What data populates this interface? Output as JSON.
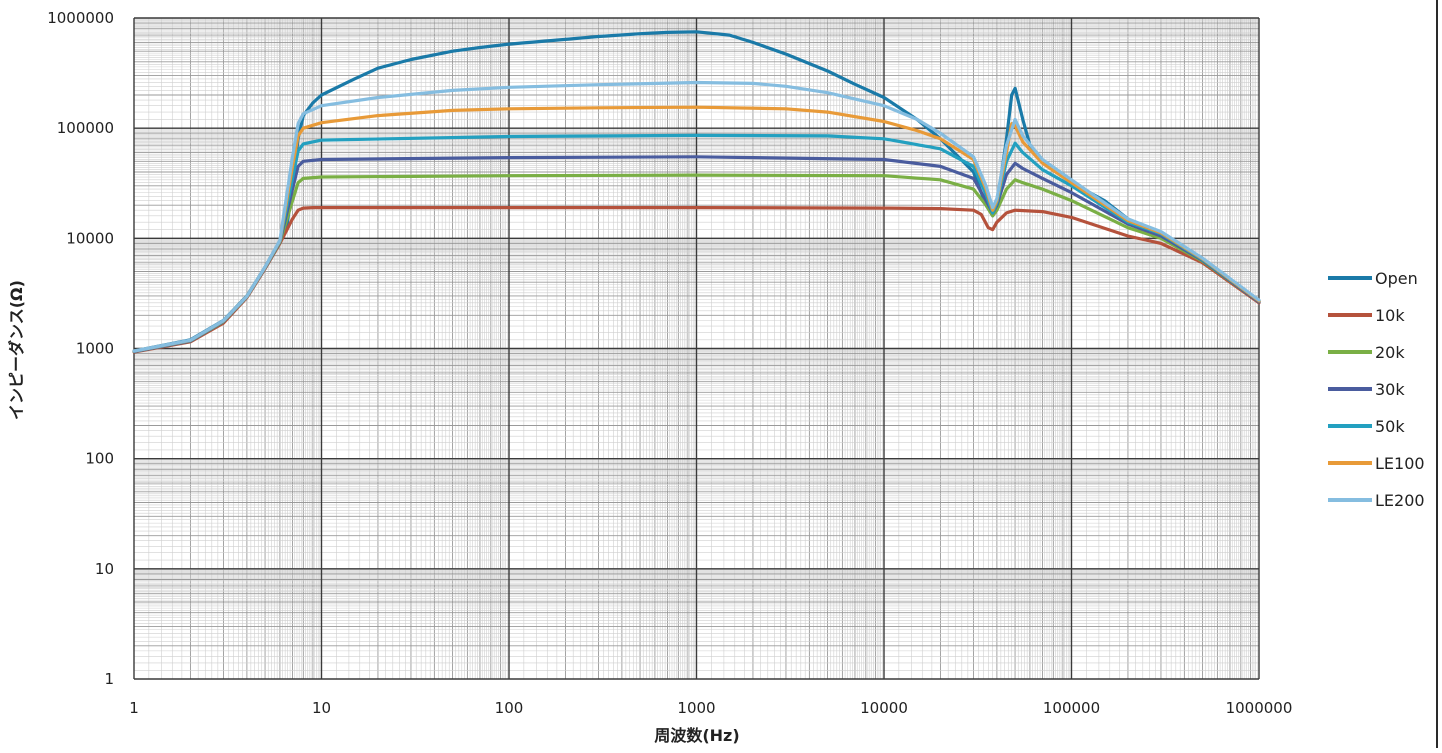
{
  "chart_data": {
    "type": "line",
    "title": "",
    "xlabel": "周波数(Hz)",
    "ylabel": "インピーダンス(Ω)",
    "x_scale": "log",
    "y_scale": "log",
    "xlim": [
      1,
      1000000
    ],
    "ylim": [
      1,
      1000000
    ],
    "x_ticks": [
      "1",
      "10",
      "100",
      "1000",
      "10000",
      "100000",
      "1000000"
    ],
    "y_ticks": [
      "1",
      "10",
      "100",
      "1000",
      "10000",
      "100000",
      "1000000"
    ],
    "grid": true,
    "legend_position": "right",
    "series": [
      {
        "name": "Open",
        "color": "#1a7aa8",
        "x": [
          1,
          2,
          3,
          4,
          5,
          6,
          6.5,
          7,
          7.5,
          8,
          9,
          10,
          15,
          20,
          30,
          50,
          70,
          100,
          200,
          300,
          500,
          700,
          1000,
          1500,
          2000,
          3000,
          5000,
          7000,
          10000,
          15000,
          20000,
          30000,
          35000,
          38000,
          40000,
          45000,
          48000,
          50000,
          55000,
          60000,
          70000,
          100000,
          150000,
          200000,
          300000,
          500000,
          1000000
        ],
        "y": [
          950,
          1200,
          1800,
          3000,
          5500,
          9500,
          12000,
          30000,
          80000,
          130000,
          170000,
          200000,
          280000,
          350000,
          420000,
          500000,
          540000,
          580000,
          640000,
          680000,
          720000,
          740000,
          750000,
          700000,
          600000,
          470000,
          330000,
          250000,
          190000,
          120000,
          80000,
          40000,
          20000,
          16000,
          20000,
          80000,
          200000,
          230000,
          120000,
          70000,
          50000,
          32000,
          22000,
          15000,
          10500,
          6000,
          2700
        ]
      },
      {
        "name": "10k",
        "color": "#b5523c",
        "x": [
          1,
          2,
          3,
          4,
          5,
          6,
          7,
          7.5,
          8,
          9,
          10,
          100,
          1000,
          10000,
          20000,
          30000,
          33000,
          36000,
          38000,
          40000,
          45000,
          50000,
          70000,
          100000,
          200000,
          300000,
          500000,
          1000000
        ],
        "y": [
          930,
          1150,
          1700,
          2900,
          5300,
          9000,
          15000,
          18000,
          18800,
          19000,
          19000,
          19000,
          19000,
          18800,
          18600,
          18000,
          16500,
          12500,
          12000,
          14000,
          17000,
          18000,
          17500,
          15500,
          10500,
          9000,
          6000,
          2600
        ]
      },
      {
        "name": "20k",
        "color": "#7aaf45",
        "x": [
          1,
          2,
          3,
          4,
          5,
          6,
          7,
          7.5,
          8,
          10,
          100,
          1000,
          10000,
          20000,
          30000,
          35000,
          38000,
          40000,
          45000,
          50000,
          55000,
          70000,
          100000,
          200000,
          300000,
          500000,
          1000000
        ],
        "y": [
          940,
          1170,
          1750,
          2950,
          5400,
          9200,
          22000,
          32000,
          35000,
          36000,
          37000,
          37500,
          37000,
          34000,
          28000,
          20000,
          16000,
          18000,
          28000,
          34000,
          32000,
          28000,
          22000,
          12500,
          10000,
          6200,
          2650
        ]
      },
      {
        "name": "30k",
        "color": "#4a5c9e",
        "x": [
          1,
          2,
          3,
          4,
          5,
          6,
          7,
          7.5,
          8,
          10,
          100,
          1000,
          10000,
          20000,
          30000,
          35000,
          38000,
          40000,
          45000,
          50000,
          55000,
          70000,
          100000,
          200000,
          300000,
          500000,
          1000000
        ],
        "y": [
          940,
          1170,
          1760,
          2950,
          5400,
          9300,
          28000,
          45000,
          50000,
          52000,
          54000,
          55000,
          52000,
          45000,
          35000,
          22000,
          17000,
          20000,
          38000,
          48000,
          43000,
          35000,
          26000,
          13500,
          10500,
          6300,
          2650
        ]
      },
      {
        "name": "50k",
        "color": "#23a0c0",
        "x": [
          1,
          2,
          3,
          4,
          5,
          6,
          7,
          7.5,
          8,
          10,
          100,
          1000,
          5000,
          10000,
          20000,
          30000,
          35000,
          38000,
          40000,
          45000,
          50000,
          55000,
          70000,
          100000,
          200000,
          300000,
          500000,
          1000000
        ],
        "y": [
          945,
          1180,
          1770,
          2960,
          5450,
          9400,
          35000,
          62000,
          72000,
          78000,
          84000,
          86000,
          85000,
          80000,
          65000,
          45000,
          25000,
          17000,
          21000,
          50000,
          73000,
          60000,
          42000,
          30000,
          14000,
          11000,
          6400,
          2700
        ]
      },
      {
        "name": "LE100",
        "color": "#e89a38",
        "x": [
          1,
          2,
          3,
          4,
          5,
          6,
          7,
          7.5,
          8,
          10,
          20,
          50,
          100,
          300,
          1000,
          3000,
          5000,
          10000,
          15000,
          20000,
          30000,
          35000,
          38000,
          40000,
          45000,
          48000,
          50000,
          55000,
          70000,
          100000,
          200000,
          300000,
          500000,
          1000000
        ],
        "y": [
          948,
          1185,
          1780,
          2970,
          5480,
          9500,
          45000,
          85000,
          100000,
          112000,
          130000,
          145000,
          150000,
          153000,
          155000,
          150000,
          140000,
          115000,
          95000,
          80000,
          52000,
          28000,
          18000,
          22000,
          60000,
          110000,
          105000,
          75000,
          48000,
          32000,
          14500,
          11200,
          6500,
          2700
        ]
      },
      {
        "name": "LE200",
        "color": "#85bde0",
        "x": [
          1,
          2,
          3,
          4,
          5,
          6,
          7,
          7.5,
          8,
          10,
          20,
          50,
          100,
          300,
          1000,
          2000,
          3000,
          5000,
          10000,
          15000,
          20000,
          30000,
          35000,
          38000,
          40000,
          45000,
          50000,
          55000,
          70000,
          100000,
          200000,
          300000,
          500000,
          1000000
        ],
        "y": [
          950,
          1190,
          1790,
          2980,
          5500,
          9600,
          55000,
          110000,
          135000,
          160000,
          190000,
          220000,
          235000,
          248000,
          260000,
          255000,
          240000,
          210000,
          160000,
          120000,
          90000,
          55000,
          30000,
          19000,
          23000,
          70000,
          120000,
          85000,
          52000,
          34000,
          15000,
          11500,
          6600,
          2750
        ]
      }
    ]
  }
}
